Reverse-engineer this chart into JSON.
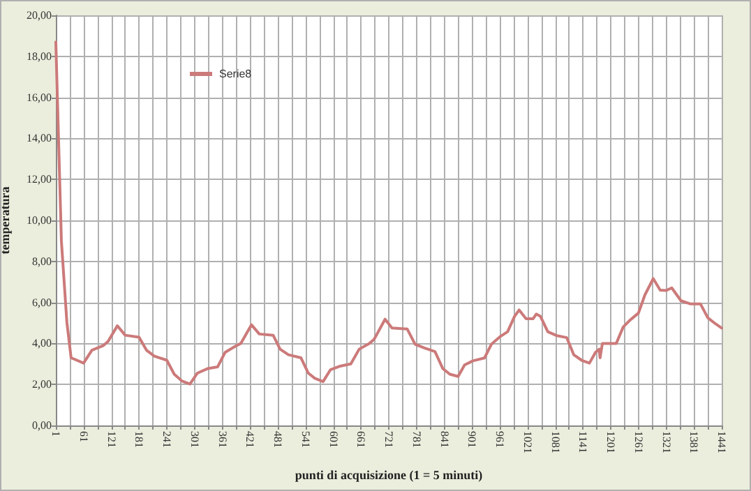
{
  "chart_data": {
    "type": "line",
    "xlabel": "punti di acquisizione (1 = 5 minuti)",
    "ylabel": "temperatura",
    "legend": "top left",
    "grid": true,
    "marker": "none",
    "line_style": "solid",
    "xlim": [
      1,
      1441
    ],
    "xticks": [
      1,
      {
        "value": 31,
        "label": null
      },
      61,
      {
        "value": 91,
        "label": null
      },
      121,
      {
        "value": 151,
        "label": null
      },
      181,
      {
        "value": 211,
        "label": null
      },
      241,
      {
        "value": 271,
        "label": null
      },
      301,
      {
        "value": 331,
        "label": null
      },
      361,
      {
        "value": 391,
        "label": null
      },
      421,
      {
        "value": 451,
        "label": null
      },
      481,
      {
        "value": 511,
        "label": null
      },
      541,
      {
        "value": 571,
        "label": null
      },
      601,
      {
        "value": 631,
        "label": null
      },
      661,
      {
        "value": 691,
        "label": null
      },
      721,
      {
        "value": 751,
        "label": null
      },
      781,
      {
        "value": 811,
        "label": null
      },
      841,
      {
        "value": 871,
        "label": null
      },
      901,
      {
        "value": 931,
        "label": null
      },
      961,
      {
        "value": 991,
        "label": null
      },
      1021,
      {
        "value": 1051,
        "label": null
      },
      1081,
      {
        "value": 1111,
        "label": null
      },
      1141,
      {
        "value": 1171,
        "label": null
      },
      1201,
      {
        "value": 1231,
        "label": null
      },
      1261,
      {
        "value": 1291,
        "label": null
      },
      1321,
      {
        "value": 1351,
        "label": null
      },
      1381,
      {
        "value": 1411,
        "label": null
      },
      1441
    ],
    "ylim": [
      0,
      20
    ],
    "yticks": [
      {
        "value": 0,
        "label": "0,00"
      },
      {
        "value": 2,
        "label": "2,00"
      },
      {
        "value": 4,
        "label": "4,00"
      },
      {
        "value": 6,
        "label": "6,00"
      },
      {
        "value": 8,
        "label": "8,00"
      },
      {
        "value": 10,
        "label": "10,00"
      },
      {
        "value": 12,
        "label": "12,00"
      },
      {
        "value": 14,
        "label": "14,00"
      },
      {
        "value": 16,
        "label": "16,00"
      },
      {
        "value": 18,
        "label": "18,00"
      },
      {
        "value": 20,
        "label": "20,00"
      }
    ],
    "x": [
      1,
      13,
      25,
      34,
      61,
      79,
      104,
      114,
      134,
      151,
      181,
      197,
      214,
      241,
      257,
      274,
      291,
      307,
      329,
      351,
      367,
      389,
      401,
      424,
      441,
      471,
      486,
      504,
      531,
      547,
      561,
      579,
      595,
      614,
      639,
      657,
      679,
      689,
      693,
      713,
      728,
      761,
      778,
      798,
      821,
      838,
      853,
      871,
      885,
      903,
      928,
      943,
      963,
      978,
      993,
      1003,
      1018,
      1033,
      1040,
      1049,
      1065,
      1083,
      1106,
      1121,
      1138,
      1155,
      1168,
      1176,
      1178,
      1183,
      1213,
      1228,
      1243,
      1261,
      1275,
      1293,
      1308,
      1321,
      1333,
      1353,
      1373,
      1395,
      1411,
      1428,
      1441
    ],
    "series": [
      {
        "name": "Serie8",
        "color": "#cc7a7a",
        "values": [
          18.7,
          9,
          5,
          3.3,
          3.04,
          3.67,
          3.9,
          4.1,
          4.86,
          4.4,
          4.3,
          3.67,
          3.38,
          3.18,
          2.5,
          2.16,
          2.02,
          2.55,
          2.77,
          2.86,
          3.56,
          3.86,
          4.0,
          4.91,
          4.46,
          4.4,
          3.72,
          3.45,
          3.3,
          2.55,
          2.3,
          2.14,
          2.72,
          2.88,
          3.0,
          3.72,
          4.0,
          4.19,
          4.35,
          5.18,
          4.75,
          4.7,
          3.96,
          3.78,
          3.6,
          2.77,
          2.5,
          2.39,
          2.95,
          3.15,
          3.29,
          3.96,
          4.35,
          4.57,
          5.32,
          5.63,
          5.2,
          5.2,
          5.43,
          5.32,
          4.57,
          4.39,
          4.28,
          3.45,
          3.18,
          3.04,
          3.56,
          3.72,
          3.3,
          4.0,
          4.0,
          4.8,
          5.14,
          5.48,
          6.37,
          7.16,
          6.6,
          6.58,
          6.71,
          6.08,
          5.93,
          5.93,
          5.25,
          4.95,
          4.75
        ]
      }
    ]
  }
}
